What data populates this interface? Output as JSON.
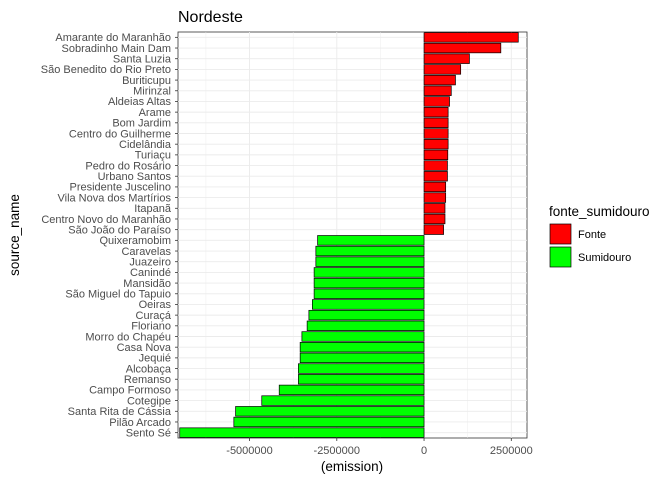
{
  "chart_data": {
    "type": "bar",
    "orientation": "horizontal",
    "title": "Nordeste",
    "xlabel": "(emission)",
    "ylabel": "source_name",
    "xlim": [
      -7050000,
      2950000
    ],
    "x_ticks": [
      -5000000,
      -2500000,
      0,
      2500000
    ],
    "x_tick_labels": [
      "-5000000",
      "-2500000",
      "0",
      "2500000"
    ],
    "grid": true,
    "legend": {
      "title": "fonte_sumidouro",
      "position": "right",
      "entries": [
        {
          "label": "Fonte",
          "color": "#FF0000"
        },
        {
          "label": "Sumidouro",
          "color": "#00FF00"
        }
      ]
    },
    "categories": [
      "Amarante do Maranhão",
      "Sobradinho Main Dam",
      "Santa Luzia",
      "São Benedito do Rio Preto",
      "Buriticupu",
      "Mirinzal",
      "Aldeias Altas",
      "Arame",
      "Bom Jardim",
      "Centro do Guilherme",
      "Cidelândia",
      "Turiaçu",
      "Pedro do Rosário",
      "Urbano Santos",
      "Presidente Juscelino",
      "Vila Nova dos Martírios",
      "Itapanã",
      "Centro Novo do Maranhão",
      "São João do Paraíso",
      "Quixeramobim",
      "Caravelas",
      "Juazeiro",
      "Canindé",
      "Mansidão",
      "São Miguel do Tapuio",
      "Oeiras",
      "Curaçá",
      "Floriano",
      "Morro do Chapéu",
      "Casa Nova",
      "Jequié",
      "Alcobaça",
      "Remanso",
      "Campo Formoso",
      "Cotegipe",
      "Santa Rita de Cássia",
      "Pilão Arcado",
      "Sento Sé"
    ],
    "values": [
      2700000,
      2200000,
      1300000,
      1050000,
      900000,
      780000,
      730000,
      690000,
      690000,
      690000,
      690000,
      680000,
      670000,
      670000,
      620000,
      620000,
      600000,
      600000,
      560000,
      -3050000,
      -3100000,
      -3100000,
      -3150000,
      -3150000,
      -3150000,
      -3200000,
      -3300000,
      -3350000,
      -3500000,
      -3550000,
      -3550000,
      -3600000,
      -3600000,
      -4150000,
      -4650000,
      -5400000,
      -5450000,
      -7000000
    ],
    "groups": [
      "Fonte",
      "Fonte",
      "Fonte",
      "Fonte",
      "Fonte",
      "Fonte",
      "Fonte",
      "Fonte",
      "Fonte",
      "Fonte",
      "Fonte",
      "Fonte",
      "Fonte",
      "Fonte",
      "Fonte",
      "Fonte",
      "Fonte",
      "Fonte",
      "Fonte",
      "Sumidouro",
      "Sumidouro",
      "Sumidouro",
      "Sumidouro",
      "Sumidouro",
      "Sumidouro",
      "Sumidouro",
      "Sumidouro",
      "Sumidouro",
      "Sumidouro",
      "Sumidouro",
      "Sumidouro",
      "Sumidouro",
      "Sumidouro",
      "Sumidouro",
      "Sumidouro",
      "Sumidouro",
      "Sumidouro",
      "Sumidouro"
    ]
  }
}
